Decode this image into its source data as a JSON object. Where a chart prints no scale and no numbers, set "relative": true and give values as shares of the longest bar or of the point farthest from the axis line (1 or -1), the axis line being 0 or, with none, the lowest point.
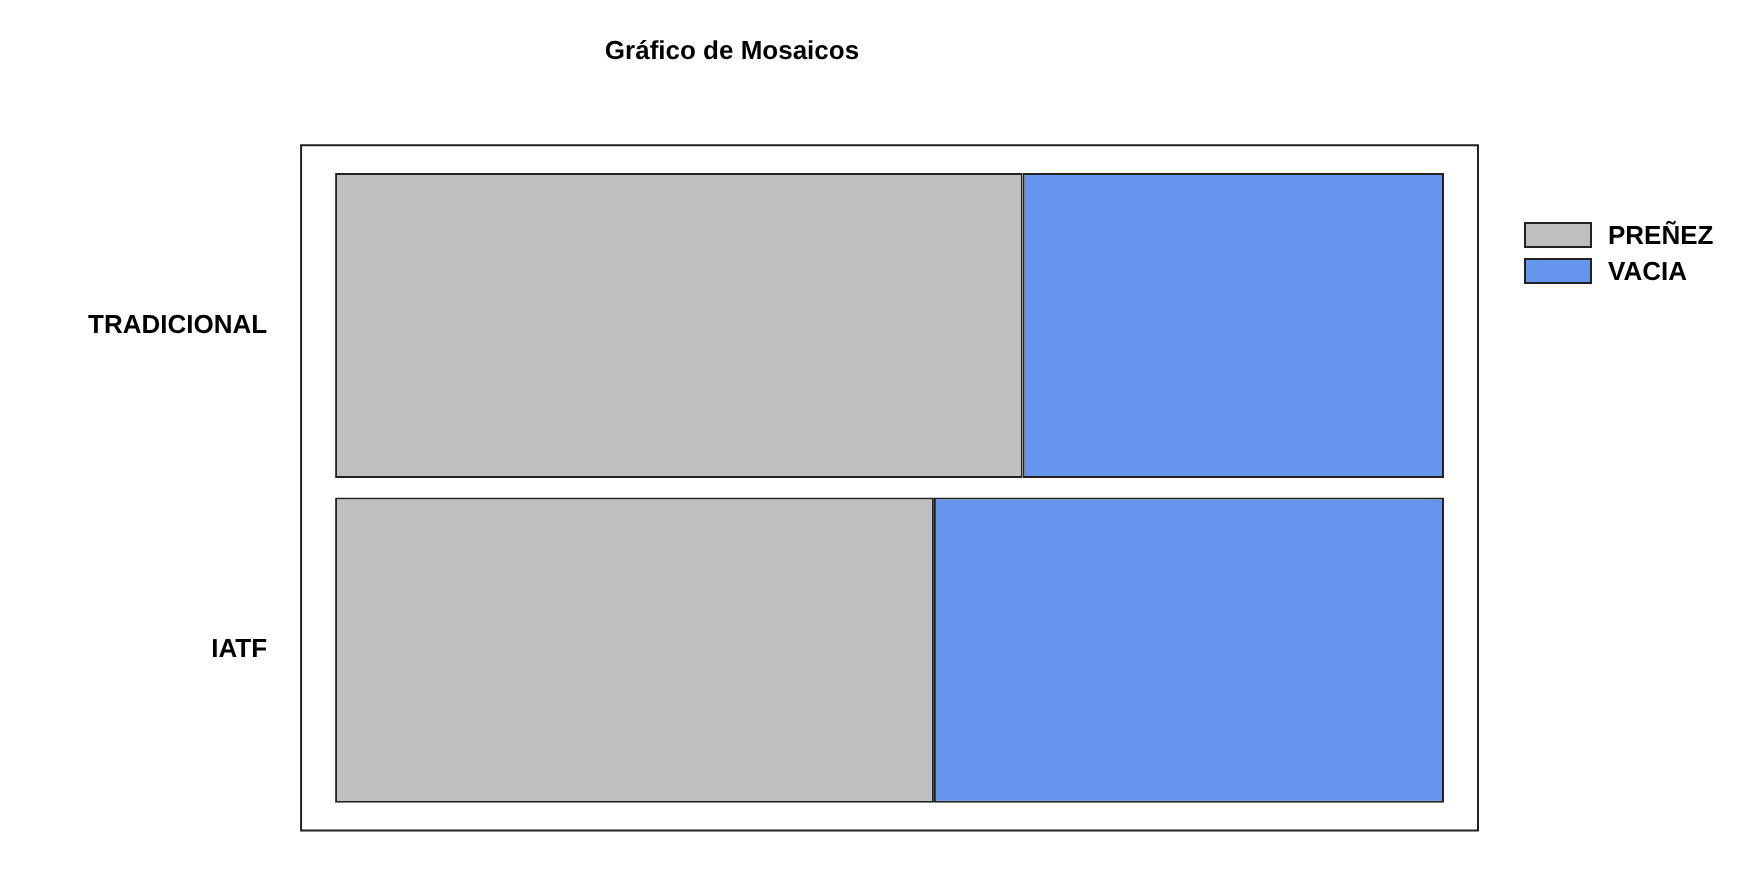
{
  "chart_data": {
    "type": "bar",
    "title": "Gráfico de Mosaicos",
    "orientation": "horizontal",
    "stacked": true,
    "relative": true,
    "categories": [
      "TRADICIONAL",
      "IATF"
    ],
    "series": [
      {
        "name": "PREÑEZ",
        "color": "#bfbfbf",
        "values": [
          0.62,
          0.54
        ]
      },
      {
        "name": "VACIA",
        "color": "#6495ed",
        "values": [
          0.38,
          0.46
        ]
      }
    ],
    "legend": "top right",
    "tick_labels": "y"
  }
}
